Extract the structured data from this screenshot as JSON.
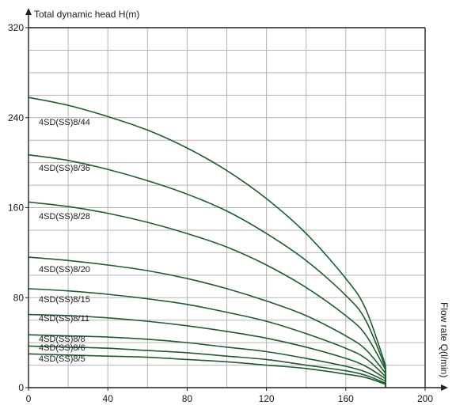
{
  "chart_data": {
    "type": "line",
    "xlabel": "Flow rate Q(l/min)",
    "ylabel": "Total dynamic head H(m)",
    "xlim": [
      0,
      200
    ],
    "ylim": [
      0,
      320
    ],
    "xticks": [
      "0",
      "40",
      "80",
      "120",
      "160",
      "200"
    ],
    "yticks": [
      "0",
      "80",
      "160",
      "240",
      "320"
    ],
    "grid": true,
    "line_color": "#1f5c2e",
    "grid_color": "#b5b5b5",
    "series": [
      {
        "name": "4SD(SS)8/44",
        "x": [
          0,
          20,
          40,
          60,
          80,
          100,
          120,
          140,
          160,
          170,
          180
        ],
        "y": [
          258,
          251,
          241,
          229,
          213,
          193,
          168,
          137,
          97,
          70,
          20
        ]
      },
      {
        "name": "4SD(SS)8/36",
        "x": [
          0,
          20,
          40,
          60,
          80,
          100,
          120,
          140,
          160,
          170,
          180
        ],
        "y": [
          207,
          202,
          194,
          184,
          172,
          157,
          137,
          113,
          82,
          60,
          18
        ]
      },
      {
        "name": "4SD(SS)8/28",
        "x": [
          0,
          20,
          40,
          60,
          80,
          100,
          120,
          140,
          160,
          170,
          180
        ],
        "y": [
          165,
          161,
          155,
          147,
          137,
          125,
          109,
          89,
          64,
          47,
          16
        ]
      },
      {
        "name": "4SD(SS)8/20",
        "x": [
          0,
          20,
          40,
          60,
          80,
          100,
          120,
          140,
          160,
          170,
          180
        ],
        "y": [
          116,
          113,
          109,
          104,
          97,
          88,
          77,
          64,
          46,
          34,
          13
        ]
      },
      {
        "name": "4SD(SS)8/15",
        "x": [
          0,
          20,
          40,
          60,
          80,
          100,
          120,
          140,
          160,
          170,
          180
        ],
        "y": [
          88,
          86,
          83,
          79,
          74,
          67,
          59,
          48,
          35,
          26,
          10
        ]
      },
      {
        "name": "4SD(SS)8/11",
        "x": [
          0,
          20,
          40,
          60,
          80,
          100,
          120,
          140,
          160,
          170,
          180
        ],
        "y": [
          65,
          64,
          62,
          59,
          55,
          50,
          44,
          36,
          26,
          19,
          8
        ]
      },
      {
        "name": "4SD(SS)8/8",
        "x": [
          0,
          20,
          40,
          60,
          80,
          100,
          120,
          140,
          160,
          170,
          180
        ],
        "y": [
          47,
          46,
          45,
          43,
          40,
          36,
          32,
          26,
          19,
          14,
          6
        ]
      },
      {
        "name": "4SD(SS)8/6",
        "x": [
          0,
          20,
          40,
          60,
          80,
          100,
          120,
          140,
          160,
          170,
          180
        ],
        "y": [
          37,
          36,
          35,
          33,
          31,
          28,
          25,
          20,
          15,
          11,
          4
        ]
      },
      {
        "name": "4SD(SS)8/5",
        "x": [
          0,
          20,
          40,
          60,
          80,
          100,
          120,
          140,
          160,
          170,
          180
        ],
        "y": [
          30,
          29,
          28,
          27,
          25,
          23,
          20,
          17,
          12,
          9,
          3
        ]
      }
    ]
  }
}
